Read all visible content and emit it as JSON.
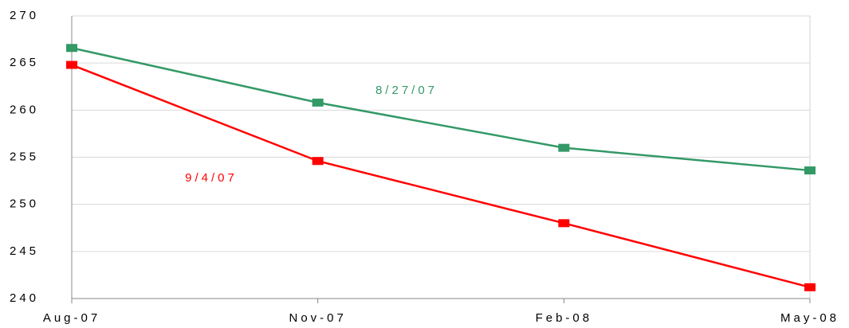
{
  "chart_data": {
    "type": "line",
    "categories": [
      "Aug-07",
      "Nov-07",
      "Feb-08",
      "May-08"
    ],
    "series": [
      {
        "name": "8/27/07",
        "color": "#339966",
        "values": [
          266.6,
          260.8,
          256.0,
          253.6
        ]
      },
      {
        "name": "9/4/07",
        "color": "#ff0000",
        "values": [
          264.8,
          254.6,
          248.0,
          241.2
        ]
      }
    ],
    "ylim": [
      240,
      270
    ],
    "yticks": [
      240,
      245,
      250,
      255,
      260,
      265,
      270
    ],
    "grid": true
  }
}
